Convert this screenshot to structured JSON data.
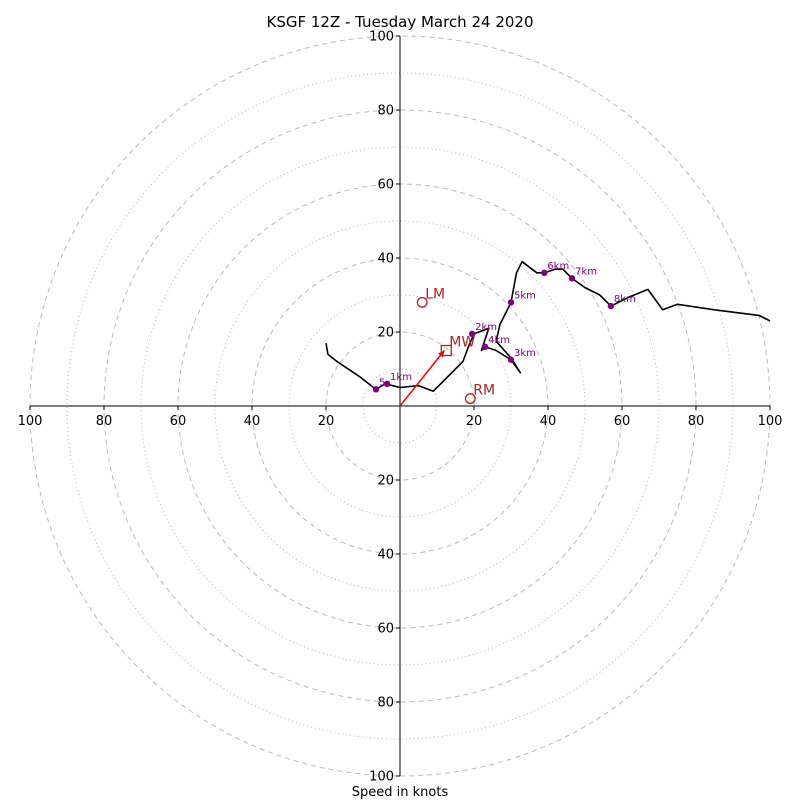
{
  "chart_data": {
    "type": "line",
    "title": "KSGF 12Z - Tuesday March 24 2020",
    "xlabel": "Speed in knots",
    "ylabel": "",
    "xlim": [
      -100,
      100
    ],
    "ylim": [
      -100,
      100
    ],
    "rings_major": [
      20,
      40,
      60,
      80,
      100
    ],
    "rings_minor": [
      10,
      30,
      50,
      70,
      90
    ],
    "x_tick_labels": [
      "100",
      "80",
      "60",
      "40",
      "20",
      "20",
      "40",
      "60",
      "80",
      "100"
    ],
    "x_tick_values": [
      -100,
      -80,
      -60,
      -40,
      -20,
      20,
      40,
      60,
      80,
      100
    ],
    "y_tick_labels": [
      "100",
      "80",
      "60",
      "40",
      "20",
      "20",
      "40",
      "60",
      "80",
      "100"
    ],
    "y_tick_values": [
      100,
      80,
      60,
      40,
      20,
      -20,
      -40,
      -60,
      -80,
      -100
    ],
    "colors": {
      "grid": "#bbbbbb",
      "profile": "#000000",
      "height_marker": "#800080",
      "motion": "#b22222",
      "mean_wind_vector": "#ff0000"
    },
    "series": [
      {
        "points": [
          [
            -20,
            17
          ],
          [
            -19.5,
            14
          ],
          [
            -17,
            12
          ],
          [
            -11,
            8
          ],
          [
            -6.5,
            4.5
          ],
          [
            -4,
            6
          ],
          [
            0,
            5
          ],
          [
            5,
            5.5
          ],
          [
            9,
            4
          ],
          [
            12,
            7
          ],
          [
            17,
            12
          ],
          [
            18.5,
            16
          ],
          [
            20,
            19.5
          ],
          [
            24,
            21
          ],
          [
            22,
            15
          ],
          [
            23,
            16
          ],
          [
            26,
            15
          ],
          [
            30,
            12.5
          ],
          [
            32.5,
            9
          ],
          [
            30,
            13
          ],
          [
            26,
            17.5
          ],
          [
            27,
            22
          ],
          [
            30,
            28
          ],
          [
            31.5,
            36
          ],
          [
            33,
            39
          ],
          [
            37,
            36
          ],
          [
            39,
            36
          ],
          [
            42,
            37
          ],
          [
            44,
            37
          ],
          [
            46.5,
            34.5
          ],
          [
            50,
            32
          ],
          [
            54,
            30
          ],
          [
            57,
            27
          ],
          [
            62,
            29.5
          ],
          [
            67,
            31.5
          ],
          [
            71,
            26
          ],
          [
            75,
            27.5
          ],
          [
            85,
            26
          ],
          [
            97,
            24.5
          ],
          [
            100,
            23
          ]
        ]
      }
    ],
    "height_markers": [
      {
        "label": "5",
        "u": -6.5,
        "v": 4.5
      },
      {
        "label": "1km",
        "u": -3.5,
        "v": 6
      },
      {
        "label": "2km",
        "u": 19.5,
        "v": 19.5
      },
      {
        "label": "4km",
        "u": 23,
        "v": 16
      },
      {
        "label": "3km",
        "u": 30,
        "v": 12.5
      },
      {
        "label": "5km",
        "u": 30,
        "v": 28
      },
      {
        "label": "6km",
        "u": 39,
        "v": 36
      },
      {
        "label": "7km",
        "u": 46.5,
        "v": 34.5
      },
      {
        "label": "8km",
        "u": 57,
        "v": 27
      }
    ],
    "storm_motion": [
      {
        "label": "LM",
        "u": 6,
        "v": 28,
        "marker": "circle"
      },
      {
        "label": "MW",
        "u": 12.5,
        "v": 15,
        "marker": "square"
      },
      {
        "label": "RM",
        "u": 19,
        "v": 2,
        "marker": "circle"
      }
    ],
    "mean_wind_vector": {
      "u": 12,
      "v": 15
    }
  }
}
